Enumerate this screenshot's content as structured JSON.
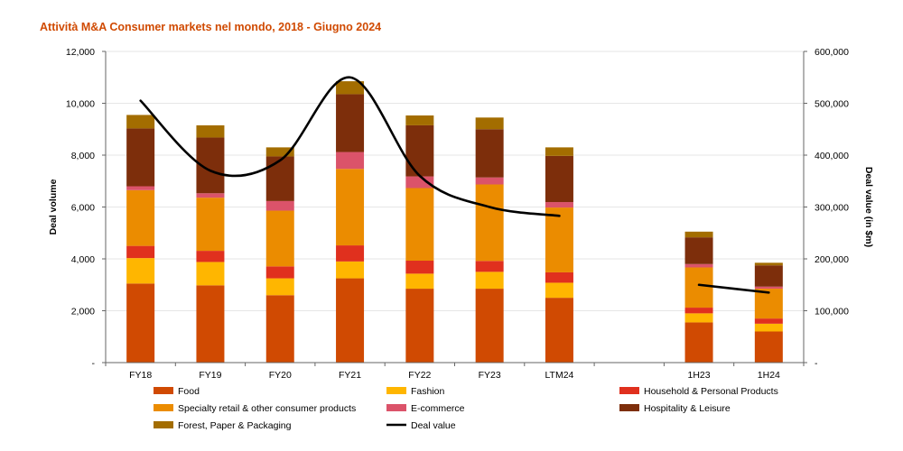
{
  "title": "Attività M&A Consumer  markets nel mondo, 2018 - Giugno 2024",
  "chart_data": {
    "type": "bar",
    "stacked": true,
    "categories": [
      "FY18",
      "FY19",
      "FY20",
      "FY21",
      "FY22",
      "FY23",
      "LTM24",
      "",
      "1H23",
      "1H24"
    ],
    "series": [
      {
        "name": "Food",
        "color": "#D04A02",
        "values": [
          3050,
          2980,
          2600,
          3250,
          2850,
          2850,
          2500,
          null,
          1550,
          1200
        ]
      },
      {
        "name": "Fashion",
        "color": "#FFB600",
        "values": [
          980,
          900,
          650,
          650,
          580,
          650,
          580,
          null,
          350,
          300
        ]
      },
      {
        "name": "Household & Personal Products",
        "color": "#E0301E",
        "values": [
          470,
          430,
          460,
          620,
          500,
          420,
          400,
          null,
          220,
          200
        ]
      },
      {
        "name": "Specialty retail & other consumer products",
        "color": "#EB8C00",
        "values": [
          2150,
          2050,
          2150,
          2950,
          2800,
          2950,
          2500,
          null,
          1550,
          1150
        ]
      },
      {
        "name": "E-commerce",
        "color": "#DB536A",
        "values": [
          150,
          170,
          370,
          650,
          450,
          270,
          210,
          null,
          130,
          80
        ]
      },
      {
        "name": "Hospitality & Leisure",
        "color": "#7D2E0B",
        "values": [
          2230,
          2150,
          1720,
          2230,
          1970,
          1860,
          1780,
          null,
          1030,
          820
        ]
      },
      {
        "name": "Forest, Paper & Packaging",
        "color": "#A36D00",
        "values": [
          520,
          470,
          350,
          500,
          380,
          450,
          330,
          null,
          220,
          100
        ]
      }
    ],
    "line_series": {
      "name": "Deal value",
      "color": "#000000",
      "axis": "right",
      "values": [
        505000,
        370000,
        390000,
        550000,
        360000,
        300000,
        283000,
        null,
        150000,
        135000
      ]
    },
    "ylabel": "Deal volume",
    "y2label": "Deal value (in $m)",
    "ylim": [
      0,
      12000
    ],
    "y2lim": [
      0,
      600000
    ],
    "yticks": [
      "-",
      "2,000",
      "4,000",
      "6,000",
      "8,000",
      "10,000",
      "12,000"
    ],
    "y2ticks": [
      "-",
      "100,000",
      "200,000",
      "300,000",
      "400,000",
      "500,000",
      "600,000"
    ],
    "grid": true,
    "legend_position": "bottom"
  }
}
